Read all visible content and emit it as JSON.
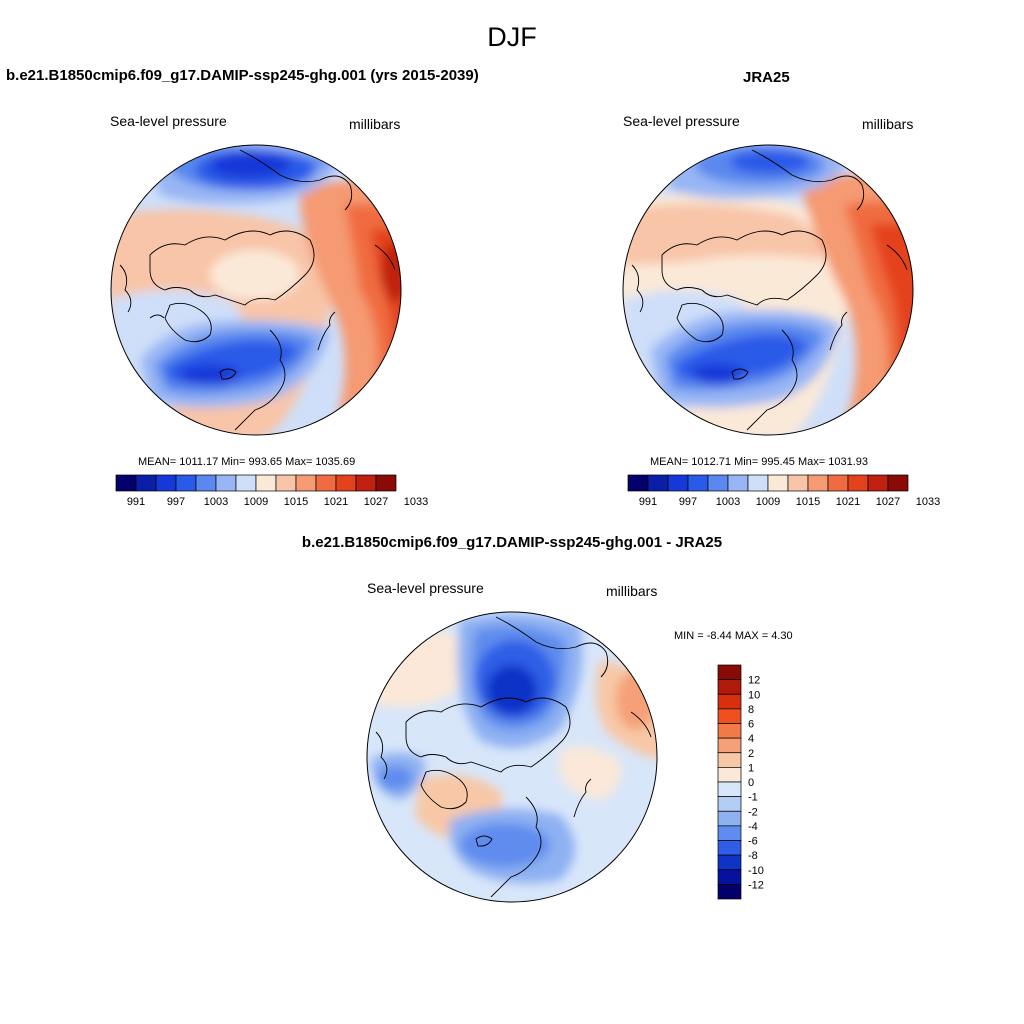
{
  "figure_title": "DJF",
  "panels": [
    {
      "title": "b.e21.B1850cmip6.f09_g17.DAMIP-ssp245-ghg.001 (yrs 2015-2039)",
      "left_label": "Sea-level pressure",
      "right_label": "millibars",
      "stats": "MEAN= 1011.17  Min= 993.65  Max= 1035.69"
    },
    {
      "title": "JRA25",
      "left_label": "Sea-level pressure",
      "right_label": "millibars",
      "stats": "MEAN= 1012.71  Min= 995.45  Max= 1031.93"
    },
    {
      "title": "b.e21.B1850cmip6.f09_g17.DAMIP-ssp245-ghg.001 - JRA25",
      "left_label": "Sea-level pressure",
      "right_label": "millibars",
      "stats": "MIN =  -8.44 MAX =   4.30"
    }
  ],
  "colorbar_slp": {
    "labels": [
      "991",
      "997",
      "1003",
      "1009",
      "1015",
      "1021",
      "1027",
      "1033"
    ],
    "colors": [
      "#03006c",
      "#0a1ea8",
      "#1439d8",
      "#2a5ae8",
      "#5a88ee",
      "#98b6f4",
      "#cfdff9",
      "#fbe9d8",
      "#f8c5a8",
      "#f59a72",
      "#f06c40",
      "#e4421c",
      "#c02010",
      "#8a0a06"
    ]
  },
  "colorbar_diff": {
    "labels": [
      "12",
      "10",
      "8",
      "6",
      "4",
      "2",
      "1",
      "0",
      "-1",
      "-2",
      "-4",
      "-6",
      "-8",
      "-10",
      "-12"
    ],
    "colors": [
      "#8a0a06",
      "#b01a0a",
      "#d8300e",
      "#f05020",
      "#f27a48",
      "#f5a078",
      "#f8c8a6",
      "#fbe8d8",
      "#d8e6fa",
      "#b4cdf6",
      "#8eb1f2",
      "#5f8cee",
      "#2f5ee6",
      "#0f33c6",
      "#06119e",
      "#03006c"
    ]
  },
  "chart_data": {
    "type": "polar-stereographic contour maps (Northern Hemisphere)",
    "season": "DJF",
    "variable": "Sea-level pressure",
    "units": "millibars",
    "maps": [
      {
        "name": "b.e21.B1850cmip6.f09_g17.DAMIP-ssp245-ghg.001 (yrs 2015-2039)",
        "mean": 1011.17,
        "min": 993.65,
        "max": 1035.69,
        "contour_levels": [
          991,
          994,
          997,
          1000,
          1003,
          1006,
          1009,
          1012,
          1015,
          1018,
          1021,
          1024,
          1027,
          1030,
          1033
        ]
      },
      {
        "name": "JRA25",
        "mean": 1012.71,
        "min": 995.45,
        "max": 1031.93,
        "contour_levels": [
          991,
          994,
          997,
          1000,
          1003,
          1006,
          1009,
          1012,
          1015,
          1018,
          1021,
          1024,
          1027,
          1030,
          1033
        ]
      },
      {
        "name": "b.e21.B1850cmip6.f09_g17.DAMIP-ssp245-ghg.001 - JRA25",
        "min": -8.44,
        "max": 4.3,
        "contour_levels": [
          -12,
          -10,
          -8,
          -6,
          -4,
          -2,
          -1,
          0,
          1,
          2,
          4,
          6,
          8,
          10,
          12
        ]
      }
    ]
  }
}
